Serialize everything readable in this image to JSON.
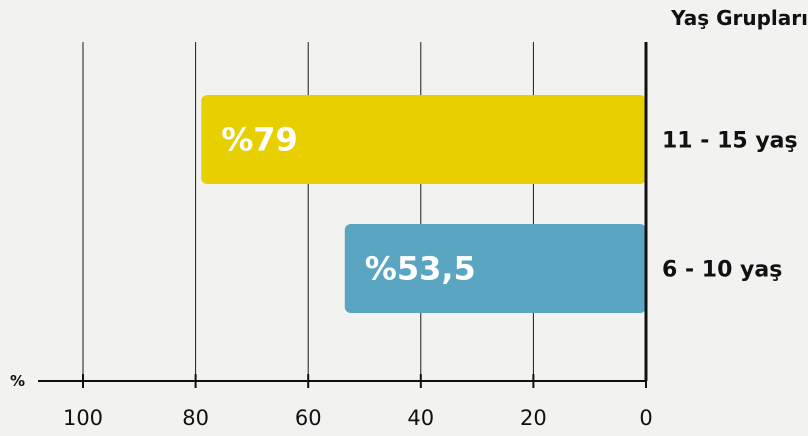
{
  "chart_data": {
    "type": "bar",
    "orientation": "horizontal",
    "x_reversed": true,
    "title": "",
    "category_axis_title": "Yaş Grupları",
    "value_axis_unit": "%",
    "categories": [
      "11 - 15 yaş",
      "6 - 10 yaş"
    ],
    "values": [
      79,
      53.5
    ],
    "value_labels": [
      "%79",
      "%53,5"
    ],
    "bar_colors": [
      "#e8cf00",
      "#5aa5c2"
    ],
    "xlim": [
      0,
      100
    ],
    "ticks": [
      100,
      80,
      60,
      40,
      20,
      0
    ],
    "tick_labels": [
      "100",
      "80",
      "60",
      "40",
      "20",
      "0"
    ],
    "grid": true,
    "legend": "none"
  }
}
